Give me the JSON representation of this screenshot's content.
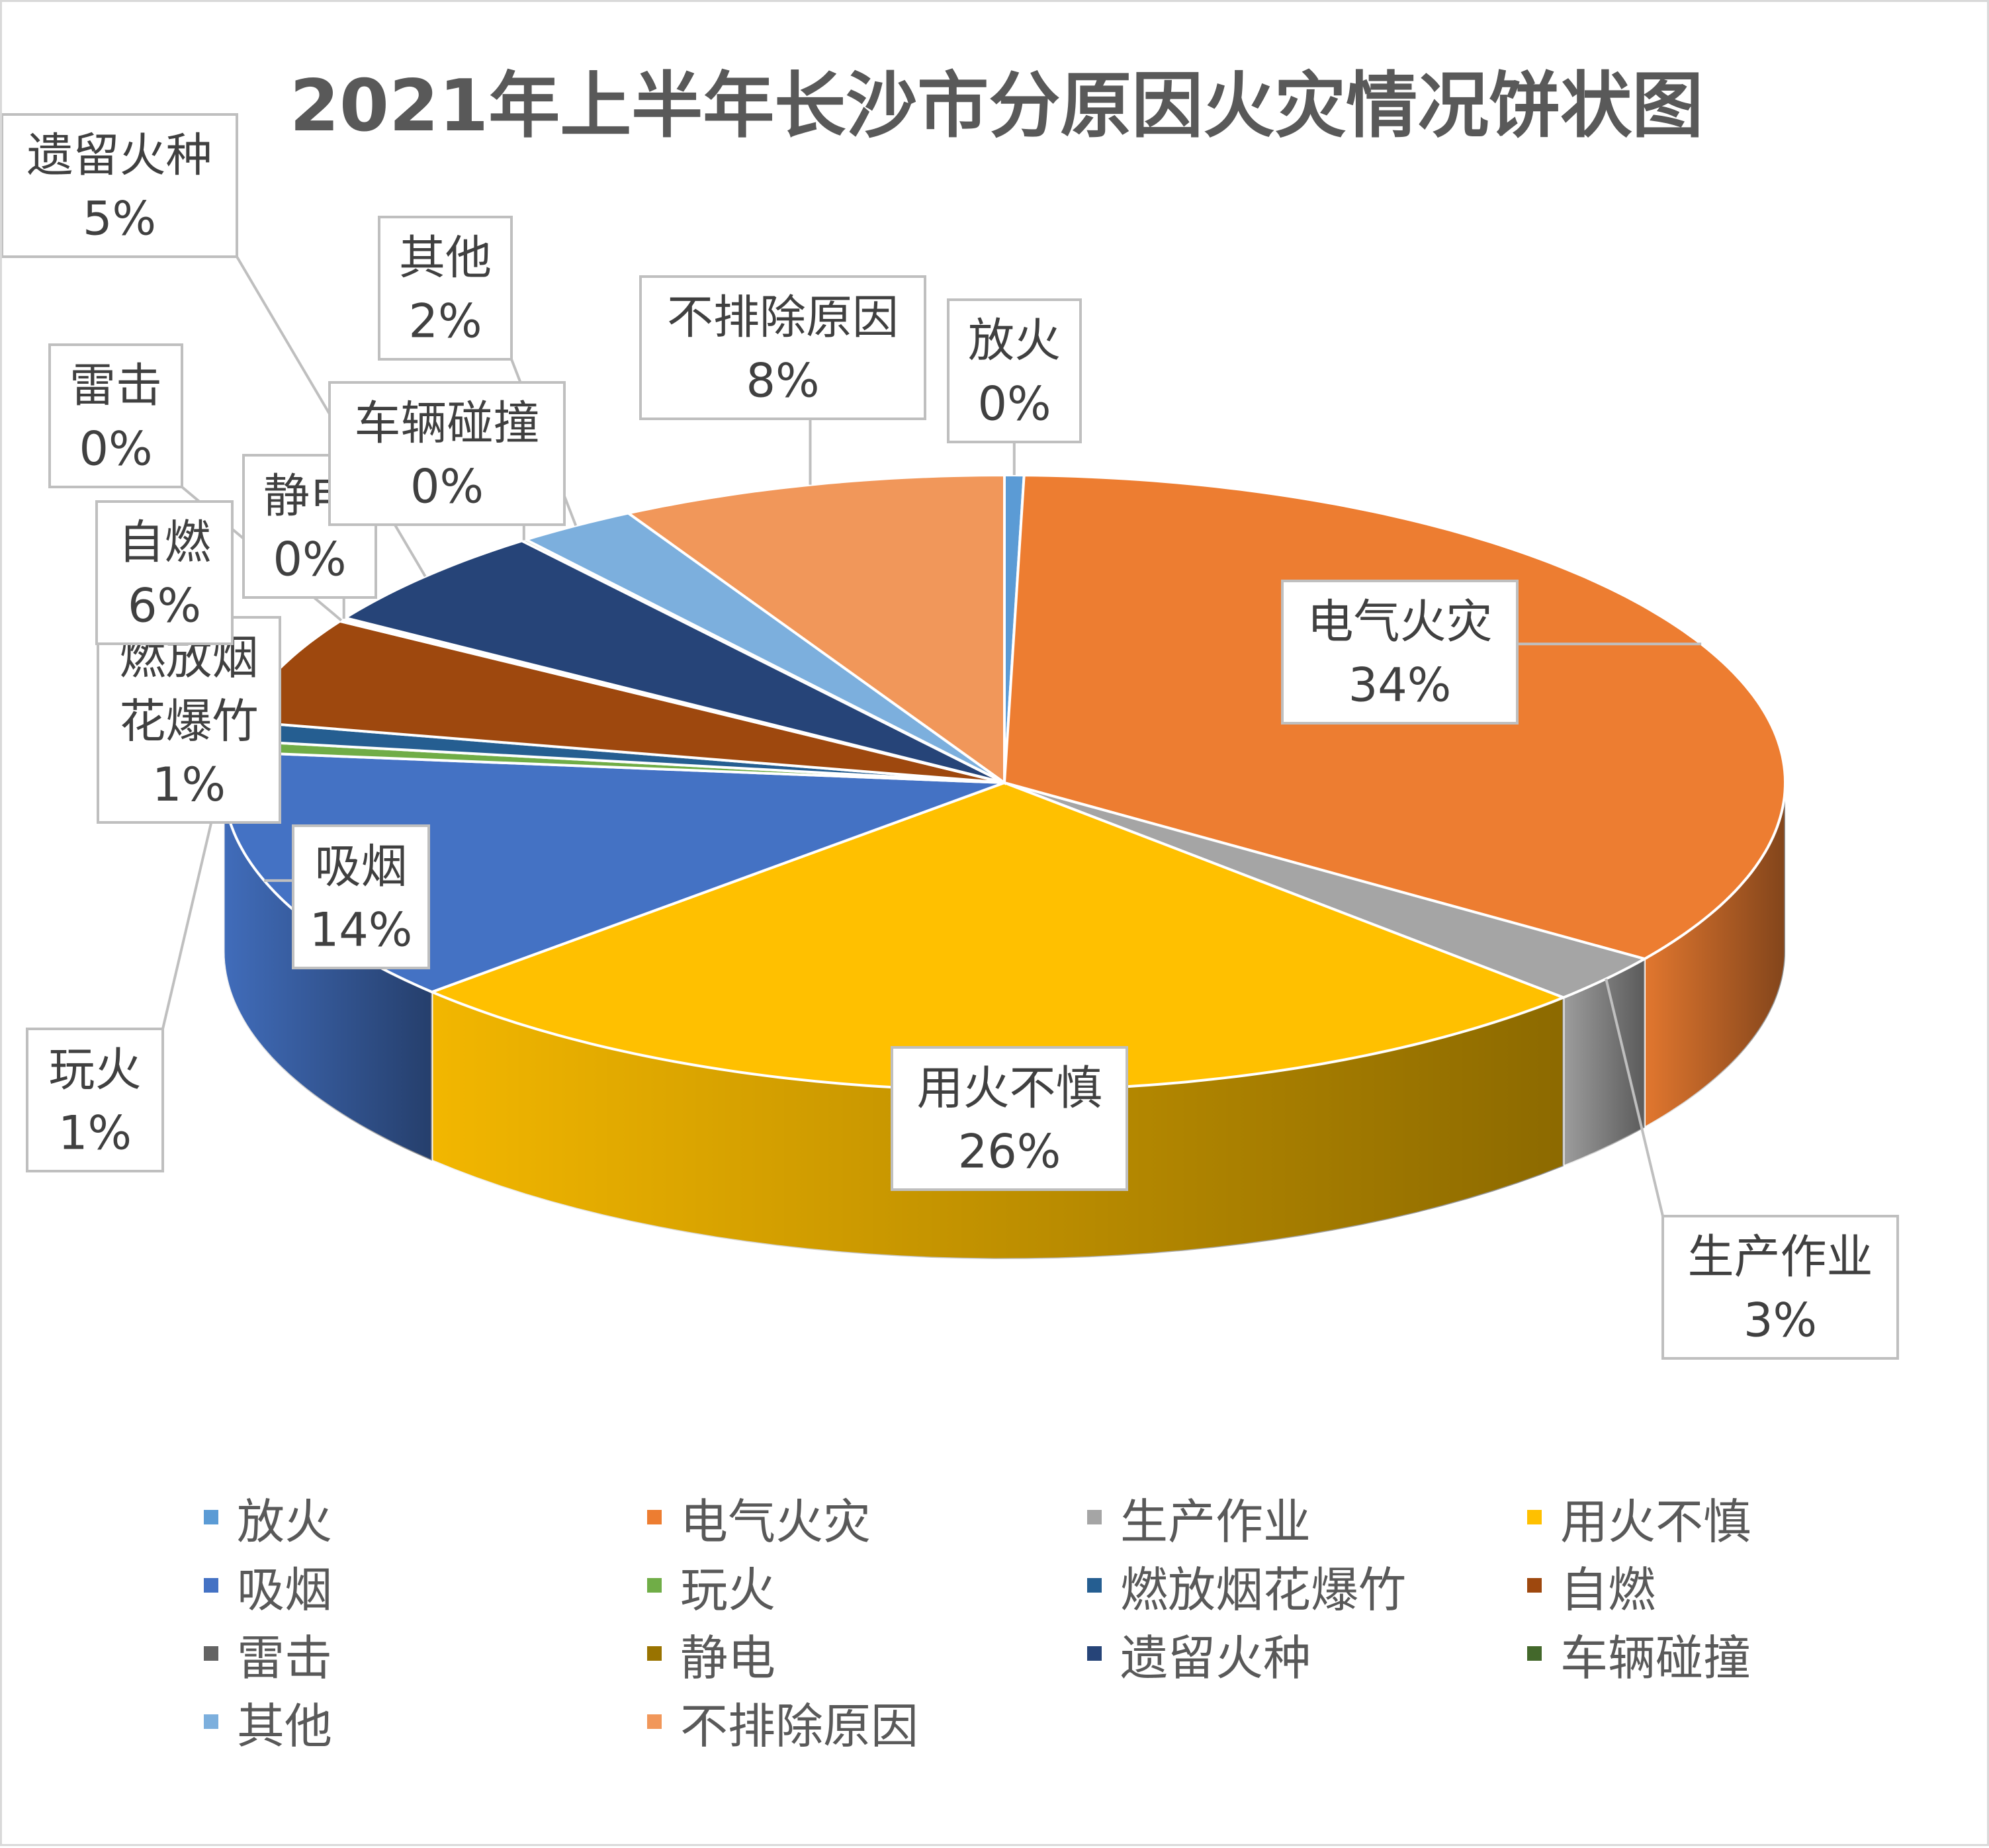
{
  "chart_data": {
    "type": "pie",
    "title": "2021年上半年长沙市分原因火灾情况饼状图",
    "labels": [
      "放火",
      "电气火灾",
      "生产作业",
      "用火不慎",
      "吸烟",
      "玩火",
      "燃放烟花爆竹",
      "自燃",
      "雷击",
      "静电",
      "遗留火种",
      "车辆碰撞",
      "其他",
      "不排除原因"
    ],
    "values": [
      0.4,
      34.3,
      2.6,
      25.8,
      13.5,
      0.6,
      1.0,
      5.6,
      0.1,
      0.1,
      5.4,
      0.1,
      2.5,
      8.0
    ],
    "percent_labels": [
      "0%",
      "34%",
      "3%",
      "26%",
      "14%",
      "1%",
      "1%",
      "6%",
      "0%",
      "0%",
      "5%",
      "0%",
      "2%",
      "8%"
    ],
    "colors": [
      "#5b9bd5",
      "#ed7d31",
      "#a5a5a5",
      "#ffc000",
      "#4472c4",
      "#70ad47",
      "#255e91",
      "#9e480e",
      "#636363",
      "#997300",
      "#264478",
      "#43682b",
      "#7cafdd",
      "#f1975a"
    ],
    "legend_position": "bottom",
    "style": "3d-pie"
  }
}
